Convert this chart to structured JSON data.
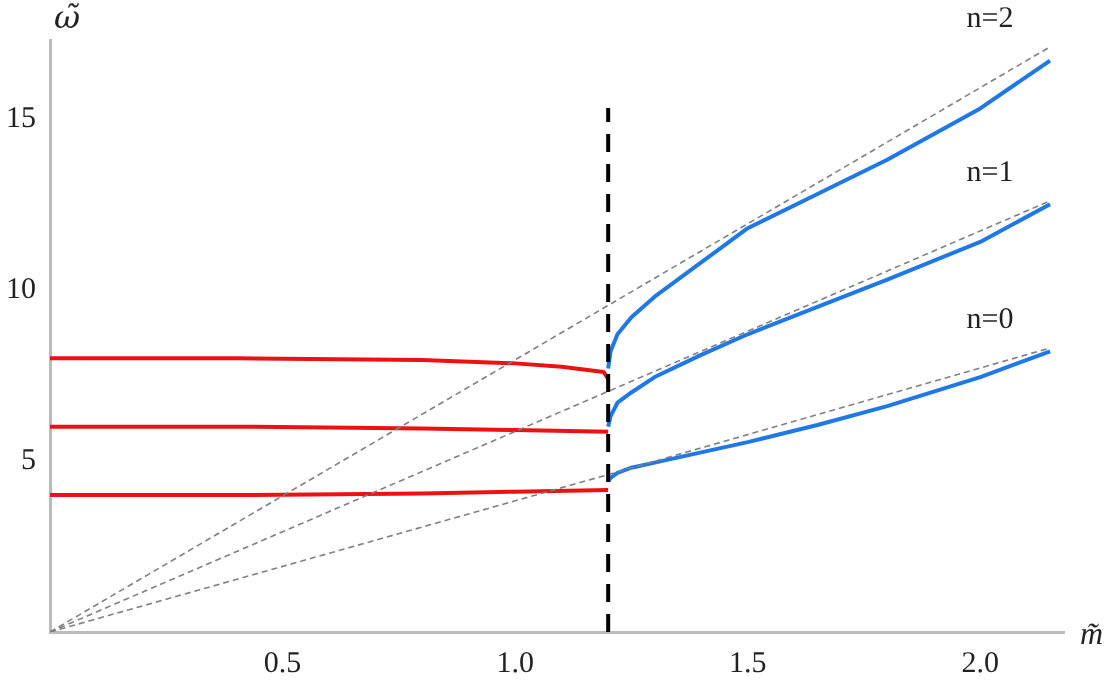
{
  "chart_data": {
    "type": "line",
    "xlabel": "m̃",
    "ylabel": "ω̃",
    "xlim": [
      0,
      2.18
    ],
    "ylim": [
      0,
      17.3
    ],
    "xticks": [
      0.5,
      {
        "value": 1,
        "label": "1.0"
      },
      1.5,
      {
        "value": 2,
        "label": "2.0"
      }
    ],
    "yticks": [
      5,
      10,
      15
    ],
    "grid": false,
    "legend": false,
    "marker": "none",
    "series": [
      {
        "name": "n=2",
        "color": "#808080",
        "line_style": "dashed",
        "x": [
          0,
          2.15
        ],
        "values": [
          0,
          17.1
        ]
      },
      {
        "name": "n=1",
        "color": "#808080",
        "line_style": "dashed",
        "x": [
          0,
          2.15
        ],
        "values": [
          0,
          12.6
        ]
      },
      {
        "name": "n=0",
        "color": "#808080",
        "line_style": "dashed",
        "x": [
          0,
          1.2,
          2.15
        ],
        "values": [
          0,
          4.6,
          8.3
        ]
      },
      {
        "color": "#ee1111",
        "line_style": "solid",
        "x": [
          0,
          0.4,
          0.8,
          1.0,
          1.1,
          1.19,
          1.2
        ],
        "values": [
          8,
          8,
          7.95,
          7.85,
          7.75,
          7.6,
          7.4
        ]
      },
      {
        "color": "#ee1111",
        "line_style": "solid",
        "x": [
          0,
          0.4,
          0.8,
          1.0,
          1.2
        ],
        "values": [
          6,
          6,
          5.95,
          5.9,
          5.85
        ]
      },
      {
        "color": "#ee1111",
        "line_style": "solid",
        "x": [
          0,
          0.4,
          0.8,
          1.0,
          1.2
        ],
        "values": [
          4,
          4,
          4.05,
          4.1,
          4.15
        ]
      },
      {
        "color": "#1f78e6",
        "line_style": "solid",
        "x": [
          1.2,
          1.205,
          1.22,
          1.25,
          1.3,
          1.4,
          1.5,
          1.65,
          1.8,
          2.0,
          2.15
        ],
        "values": [
          7.7,
          8.2,
          8.7,
          9.2,
          9.8,
          10.8,
          11.8,
          12.8,
          13.8,
          15.3,
          16.7
        ]
      },
      {
        "color": "#1f78e6",
        "line_style": "solid",
        "x": [
          1.2,
          1.205,
          1.22,
          1.25,
          1.3,
          1.4,
          1.5,
          1.65,
          1.8,
          2.0,
          2.15
        ],
        "values": [
          6.0,
          6.3,
          6.7,
          7.0,
          7.45,
          8.1,
          8.7,
          9.5,
          10.3,
          11.4,
          12.5
        ]
      },
      {
        "color": "#1f78e6",
        "line_style": "solid",
        "x": [
          1.2,
          1.205,
          1.22,
          1.25,
          1.3,
          1.4,
          1.5,
          1.65,
          1.8,
          2.0,
          2.15
        ],
        "values": [
          4.4,
          4.5,
          4.65,
          4.8,
          4.95,
          5.25,
          5.55,
          6.05,
          6.6,
          7.45,
          8.2
        ]
      }
    ],
    "ref_lines": [
      {
        "axis": "x",
        "value": 1.2,
        "color": "#000000",
        "line_style": "dashed"
      }
    ]
  }
}
